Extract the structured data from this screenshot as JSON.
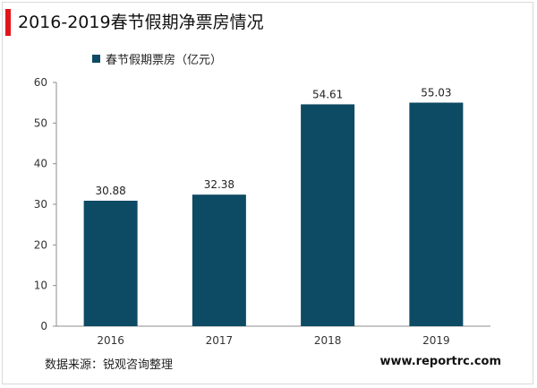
{
  "title": "2016-2019春节假期净票房情况",
  "source": "数据来源：锐观咨询整理",
  "website": "www.reportrc.com",
  "colors": {
    "accent": "#e0161b",
    "bar": "#0d4a63"
  },
  "chart_data": {
    "type": "bar",
    "title": "2016-2019春节假期净票房情况",
    "categories": [
      "2016",
      "2017",
      "2018",
      "2019"
    ],
    "series": [
      {
        "name": "春节假期票房（亿元）",
        "values": [
          30.88,
          32.38,
          54.61,
          55.03
        ]
      }
    ],
    "data_labels": [
      "30.88",
      "32.38",
      "54.61",
      "55.03"
    ],
    "ylim": [
      0,
      60
    ],
    "yticks": [
      0,
      10,
      20,
      30,
      40,
      50,
      60
    ],
    "grid": false,
    "legend": "top-left"
  }
}
